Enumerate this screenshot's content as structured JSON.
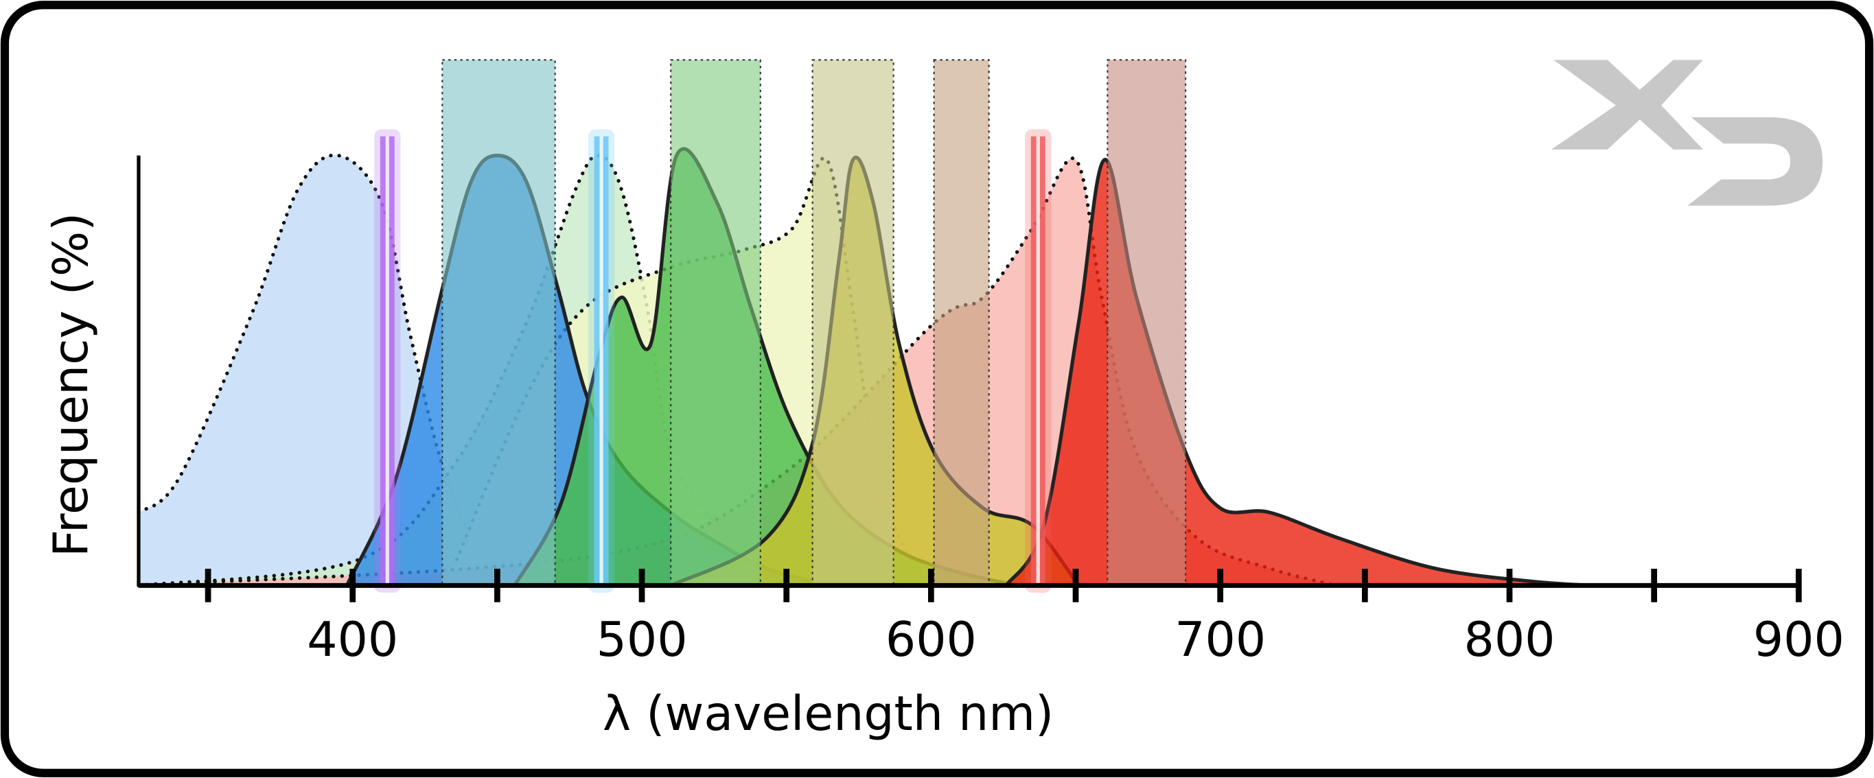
{
  "chart_data": {
    "type": "area",
    "x_label": "λ (wavelength nm)",
    "y_label": "Frequency (%)",
    "xlim": [
      326,
      900
    ],
    "ylim": [
      0,
      100
    ],
    "xticks": [
      400,
      500,
      600,
      700,
      800,
      900
    ],
    "xminor_ticks": [
      350,
      450,
      550,
      650,
      750,
      850
    ],
    "series": [
      {
        "style": "dotted",
        "color": "#c4ddf7",
        "x": [
          326,
          340,
          365,
          381,
          395,
          410,
          420,
          431,
          443,
          456
        ],
        "values": [
          17,
          25,
          63,
          92,
          100,
          89,
          58,
          28,
          8,
          0
        ]
      },
      {
        "style": "dotted",
        "color": "#cdeccd",
        "x": [
          326,
          402,
          435,
          460,
          477,
          485,
          493,
          502,
          510,
          526,
          543
        ],
        "values": [
          0,
          6,
          28,
          61,
          92,
          100,
          92,
          64,
          31,
          14,
          3
        ]
      },
      {
        "style": "dotted",
        "color": "#eef6c2",
        "x": [
          436,
          460,
          481,
          510,
          535,
          552,
          564,
          573,
          581,
          593,
          606
        ],
        "values": [
          6,
          44,
          65,
          74,
          78,
          83,
          99,
          64,
          28,
          6,
          0
        ]
      },
      {
        "style": "dotted",
        "color": "#f9b9b2",
        "x": [
          326,
          485,
          547,
          601,
          618,
          635,
          650,
          659,
          671,
          692,
          717,
          740
        ],
        "values": [
          0,
          7,
          25,
          61,
          67,
          83,
          99,
          67,
          31,
          11,
          4,
          0
        ]
      },
      {
        "style": "solid",
        "color": "#2a8ae6",
        "x": [
          398,
          415,
          431,
          441,
          450,
          460,
          471,
          481,
          493,
          510,
          526,
          543,
          559
        ],
        "values": [
          0,
          25,
          69,
          94,
          100,
          94,
          69,
          44,
          28,
          17,
          10,
          4,
          1
        ]
      },
      {
        "style": "solid",
        "color": "#49bb4a",
        "x": [
          456,
          472,
          485,
          493,
          503,
          512,
          526,
          538,
          551,
          568,
          589,
          610,
          630
        ],
        "values": [
          0,
          19,
          53,
          67,
          56,
          100,
          89,
          64,
          39,
          19,
          8,
          3,
          0
        ]
      },
      {
        "style": "solid",
        "color": "#c9c42c",
        "x": [
          510,
          543,
          559,
          568,
          573,
          580,
          589,
          601,
          618,
          635,
          651
        ],
        "values": [
          0,
          11,
          33,
          75,
          99,
          89,
          56,
          31,
          18,
          14,
          0
        ]
      },
      {
        "style": "solid",
        "color": "#ea2210",
        "x": [
          626,
          639,
          651,
          660,
          671,
          688,
          700,
          717,
          741,
          774,
          807,
          828
        ],
        "values": [
          0,
          14,
          61,
          99,
          67,
          31,
          18,
          17,
          11,
          4,
          1,
          0
        ]
      }
    ],
    "filters": [
      {
        "range": [
          431,
          470
        ],
        "color": "#7fc3c8"
      },
      {
        "range": [
          510,
          541
        ],
        "color": "#7fcc80"
      },
      {
        "range": [
          559,
          587
        ],
        "color": "#c4c488"
      },
      {
        "range": [
          601,
          620
        ],
        "color": "#c4a27e"
      },
      {
        "range": [
          661,
          688
        ],
        "color": "#c48c80"
      }
    ],
    "lasers": [
      {
        "value": 412,
        "color": "#b36cf0"
      },
      {
        "value": 486,
        "color": "#6cc8fa"
      },
      {
        "value": 637,
        "color": "#f25a5a"
      }
    ]
  }
}
